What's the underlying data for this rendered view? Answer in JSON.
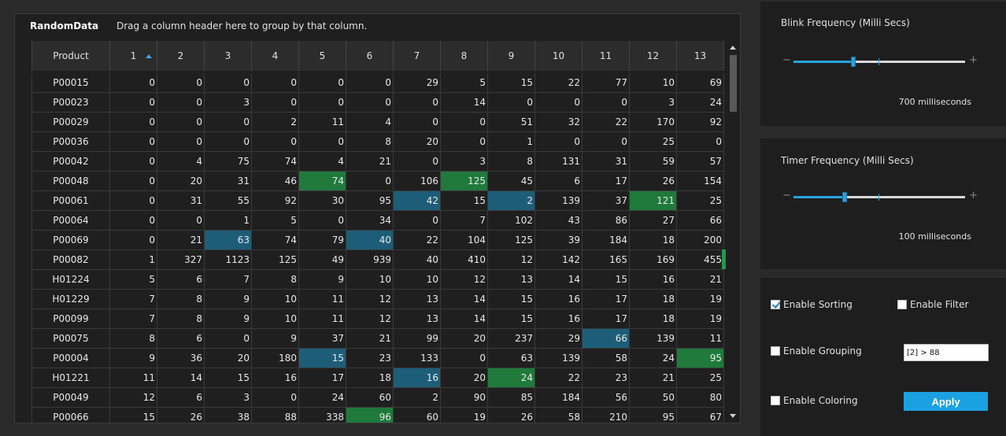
{
  "grid": {
    "title": "RandomData",
    "group_hint": "Drag a column header here to group by that column.",
    "columns": [
      "Product",
      "1",
      "2",
      "3",
      "4",
      "5",
      "6",
      "7",
      "8",
      "9",
      "10",
      "11",
      "12",
      "13"
    ],
    "rows": [
      {
        "cells": [
          "P00015",
          "0",
          "0",
          "0",
          "0",
          "0",
          "0",
          "29",
          "5",
          "15",
          "22",
          "77",
          "10",
          "69"
        ],
        "hl": {}
      },
      {
        "cells": [
          "P00023",
          "0",
          "0",
          "3",
          "0",
          "0",
          "0",
          "0",
          "14",
          "0",
          "0",
          "0",
          "3",
          "24"
        ],
        "hl": {}
      },
      {
        "cells": [
          "P00029",
          "0",
          "0",
          "0",
          "2",
          "11",
          "4",
          "0",
          "0",
          "51",
          "32",
          "22",
          "170",
          "92"
        ],
        "hl": {}
      },
      {
        "cells": [
          "P00036",
          "0",
          "0",
          "0",
          "0",
          "0",
          "8",
          "20",
          "0",
          "1",
          "0",
          "0",
          "25",
          "0"
        ],
        "hl": {}
      },
      {
        "cells": [
          "P00042",
          "0",
          "4",
          "75",
          "74",
          "4",
          "21",
          "0",
          "3",
          "8",
          "131",
          "31",
          "59",
          "57"
        ],
        "hl": {}
      },
      {
        "cells": [
          "P00048",
          "0",
          "20",
          "31",
          "46",
          "74",
          "0",
          "106",
          "125",
          "45",
          "6",
          "17",
          "26",
          "154"
        ],
        "hl": {
          "5": "green",
          "8": "green"
        }
      },
      {
        "cells": [
          "P00061",
          "0",
          "31",
          "55",
          "92",
          "30",
          "95",
          "42",
          "15",
          "2",
          "139",
          "37",
          "121",
          "25"
        ],
        "hl": {
          "7": "blue",
          "9": "blue",
          "12": "green"
        }
      },
      {
        "cells": [
          "P00064",
          "0",
          "0",
          "1",
          "5",
          "0",
          "34",
          "0",
          "7",
          "102",
          "43",
          "86",
          "27",
          "66"
        ],
        "hl": {}
      },
      {
        "cells": [
          "P00069",
          "0",
          "21",
          "63",
          "74",
          "79",
          "40",
          "22",
          "104",
          "125",
          "39",
          "184",
          "18",
          "200"
        ],
        "hl": {
          "3": "blue",
          "6": "blue"
        }
      },
      {
        "cells": [
          "P00082",
          "1",
          "327",
          "1123",
          "125",
          "49",
          "939",
          "40",
          "410",
          "12",
          "142",
          "165",
          "169",
          "455"
        ],
        "hl": {}
      },
      {
        "cells": [
          "H01224",
          "5",
          "6",
          "7",
          "8",
          "9",
          "10",
          "10",
          "12",
          "13",
          "14",
          "15",
          "16",
          "21"
        ],
        "hl": {}
      },
      {
        "cells": [
          "H01229",
          "7",
          "8",
          "9",
          "10",
          "11",
          "12",
          "13",
          "14",
          "15",
          "16",
          "17",
          "18",
          "19"
        ],
        "hl": {}
      },
      {
        "cells": [
          "P00099",
          "7",
          "8",
          "9",
          "10",
          "11",
          "12",
          "13",
          "14",
          "15",
          "16",
          "17",
          "18",
          "19"
        ],
        "hl": {}
      },
      {
        "cells": [
          "P00075",
          "8",
          "6",
          "0",
          "9",
          "37",
          "21",
          "99",
          "20",
          "237",
          "29",
          "66",
          "139",
          "11"
        ],
        "hl": {
          "11": "blue"
        }
      },
      {
        "cells": [
          "P00004",
          "9",
          "36",
          "20",
          "180",
          "15",
          "23",
          "133",
          "0",
          "63",
          "139",
          "58",
          "24",
          "95"
        ],
        "hl": {
          "5": "blue",
          "13": "green"
        }
      },
      {
        "cells": [
          "H01221",
          "11",
          "14",
          "15",
          "16",
          "17",
          "18",
          "16",
          "20",
          "24",
          "22",
          "23",
          "21",
          "25"
        ],
        "hl": {
          "7": "blue",
          "9": "green"
        }
      },
      {
        "cells": [
          "P00049",
          "12",
          "6",
          "3",
          "0",
          "24",
          "60",
          "2",
          "90",
          "85",
          "184",
          "56",
          "50",
          "80"
        ],
        "hl": {}
      },
      {
        "cells": [
          "P00066",
          "15",
          "26",
          "38",
          "88",
          "338",
          "96",
          "60",
          "19",
          "26",
          "58",
          "210",
          "95",
          "67"
        ],
        "hl": {
          "6": "green"
        }
      }
    ]
  },
  "blink": {
    "label": "Blink Frequency (Milli Secs)",
    "value_text": "700 milliseconds",
    "level": 0.35,
    "minus": "−",
    "plus": "+"
  },
  "timer": {
    "label": "Timer Frequency (Milli Secs)",
    "value_text": "100 milliseconds",
    "level": 0.3,
    "minus": "−",
    "plus": "+"
  },
  "options": {
    "enable_sorting": {
      "label": "Enable Sorting",
      "checked": true
    },
    "enable_filter": {
      "label": "Enable Filter",
      "checked": false
    },
    "enable_grouping": {
      "label": "Enable Grouping",
      "checked": false
    },
    "enable_coloring": {
      "label": "Enable Coloring",
      "checked": false
    },
    "filter_value": "[2] > 88",
    "apply_label": "Apply"
  },
  "colors": {
    "accent": "#1ba1e2",
    "cell_blue": "#1d5d78",
    "cell_green": "#1f7a3c"
  }
}
